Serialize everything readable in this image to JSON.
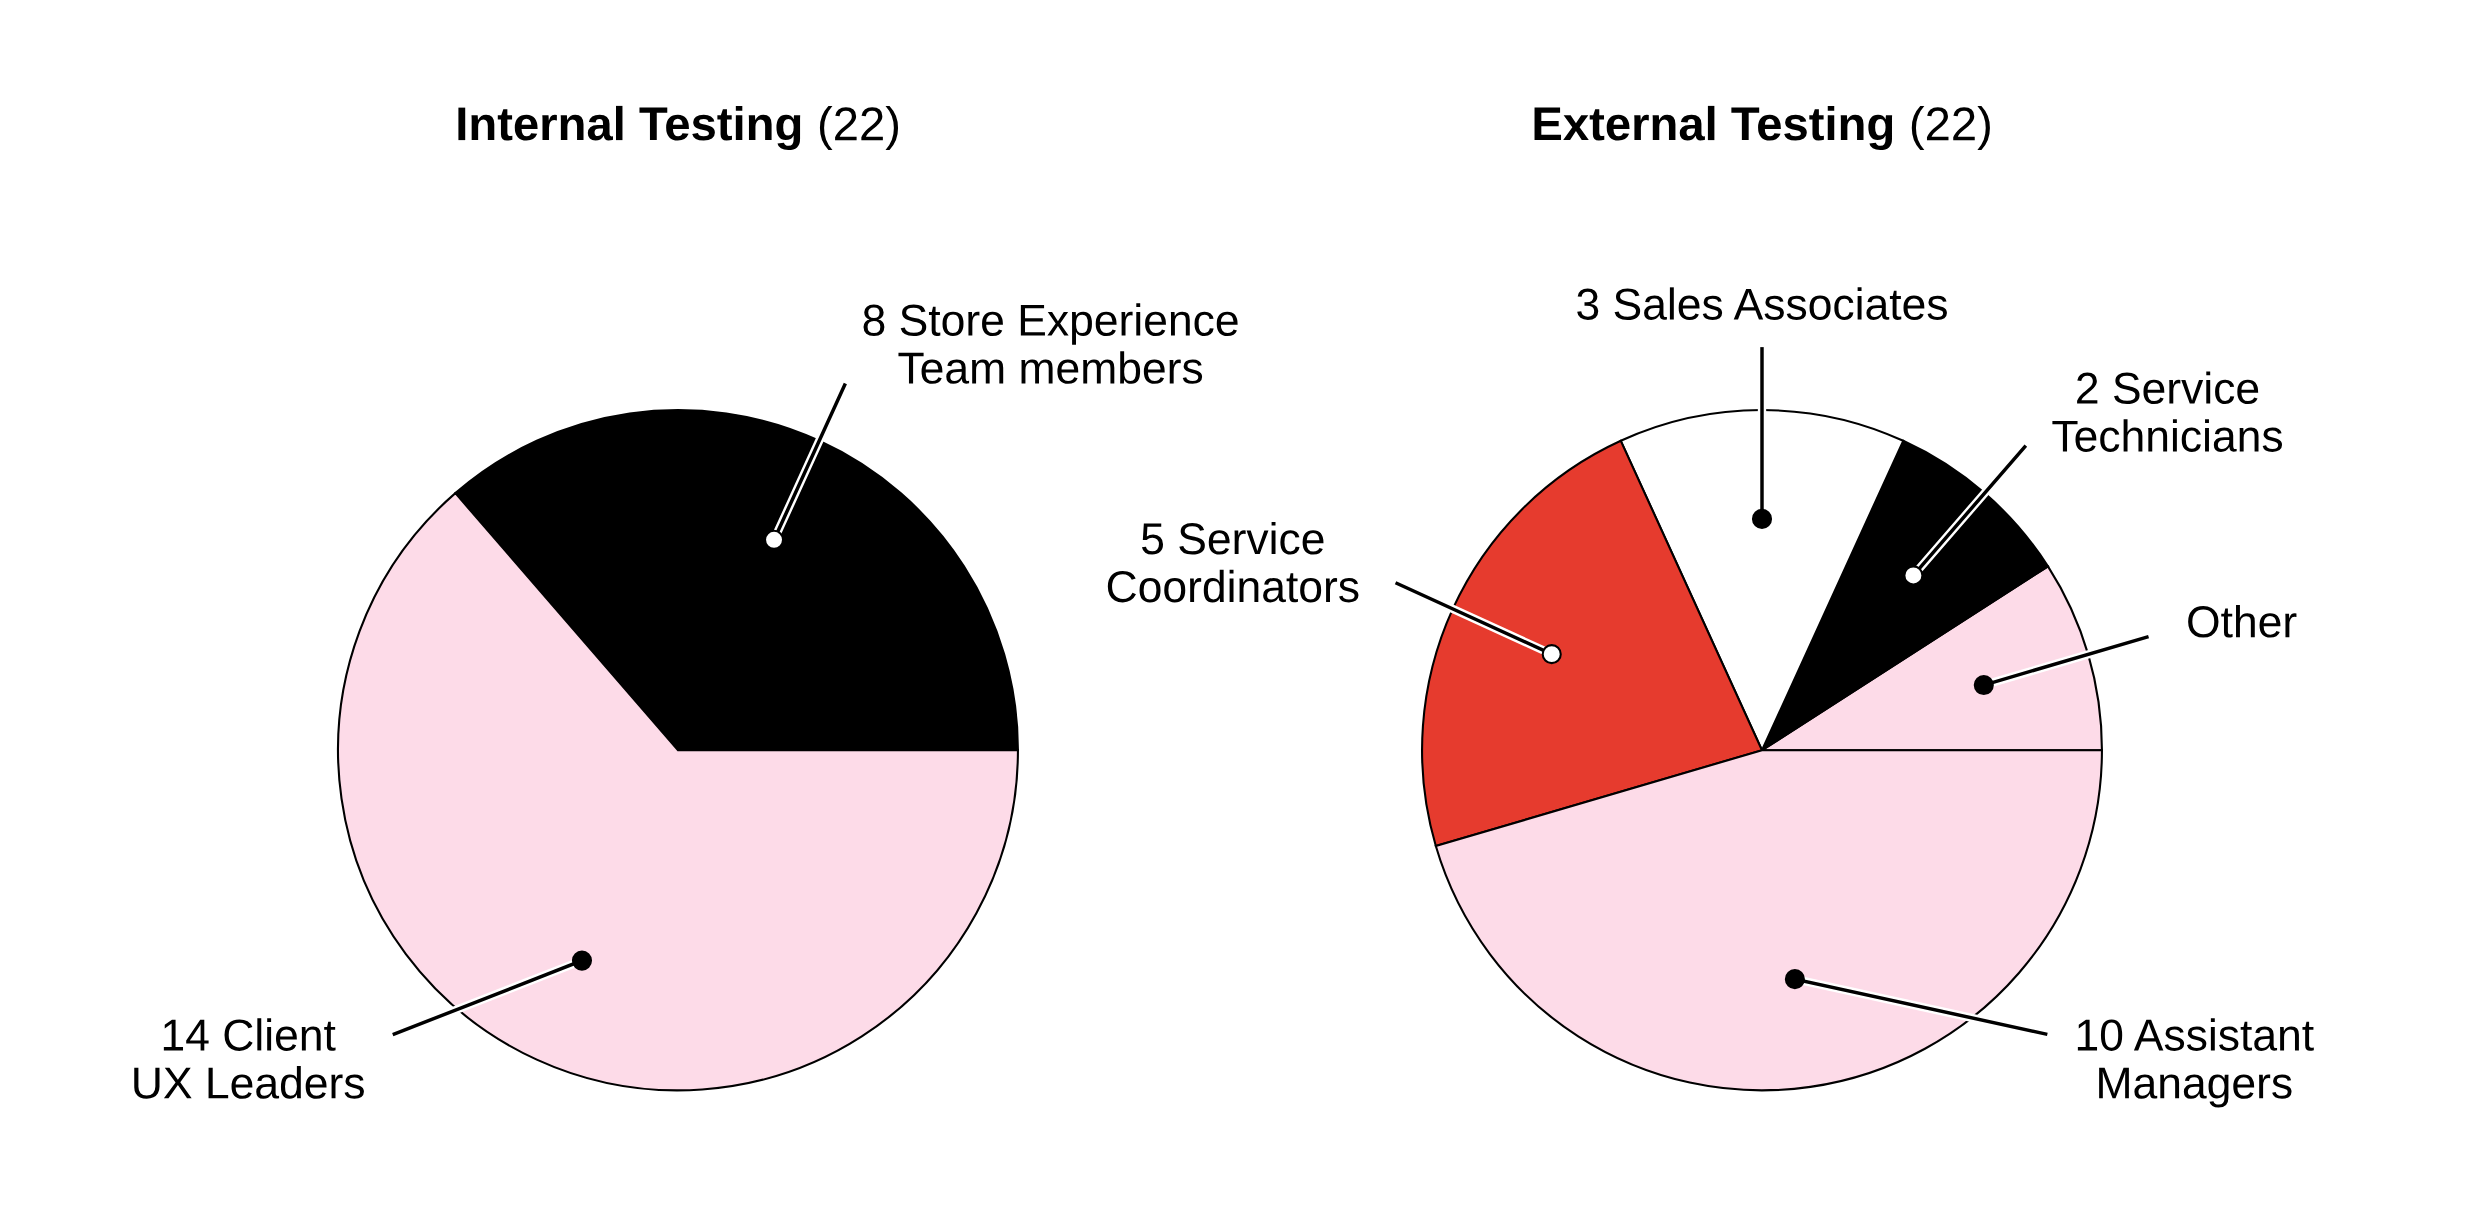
{
  "chart_data": [
    {
      "type": "pie",
      "title": "Internal Testing (22)",
      "categories": [
        "Store Experience\nTeam members",
        "Client\nUX Leaders"
      ],
      "values": [
        8,
        14
      ],
      "value_labels": [
        "8",
        "14"
      ],
      "colors": [
        "#000000",
        "#fddbe8"
      ]
    },
    {
      "type": "pie",
      "title": "External Testing (22)",
      "categories": [
        "Other",
        "Service\nTechnicians",
        "Sales Associates",
        "Service\nCoordinators",
        "Assistant\nManagers"
      ],
      "values": [
        2,
        2,
        3,
        5,
        10
      ],
      "value_labels": [
        null,
        "2",
        "3",
        "5",
        "10"
      ],
      "colors": [
        "#fddbe8",
        "#000000",
        "#ffffff",
        "#e63b2e",
        "#fddbe8"
      ]
    }
  ]
}
